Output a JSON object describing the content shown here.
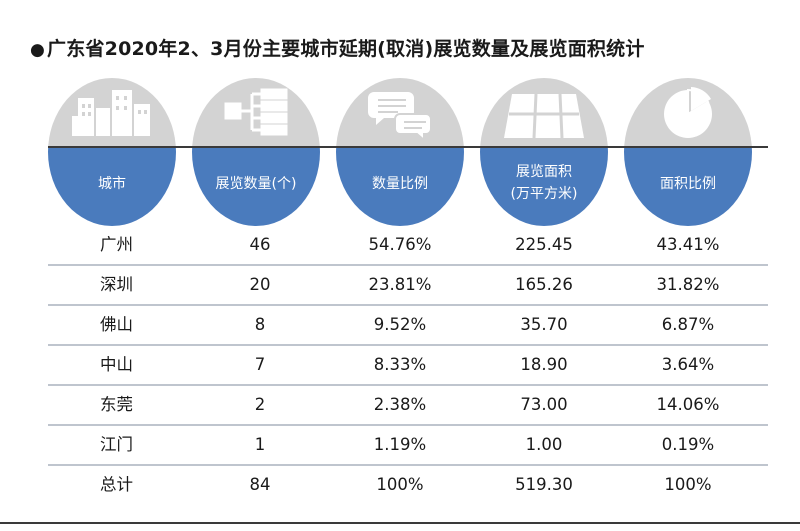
{
  "title": {
    "bullet": "●",
    "text": "广东省2020年2、3月份主要城市延期(取消)展览数量及展览面积统计"
  },
  "chart_data": {
    "type": "table",
    "title": "广东省2020年2、3月份主要城市延期(取消)展览数量及展览面积统计",
    "columns": [
      {
        "key": "city",
        "label": "城市",
        "icon": "buildings-icon"
      },
      {
        "key": "count",
        "label": "展览数量(个)",
        "icon": "hierarchy-icon"
      },
      {
        "key": "count_pct",
        "label": "数量比例",
        "icon": "speech-bubbles-icon"
      },
      {
        "key": "area",
        "label": "展览面积",
        "label2": "(万平方米)",
        "icon": "floor-plan-icon"
      },
      {
        "key": "area_pct",
        "label": "面积比例",
        "icon": "pie-chart-icon"
      }
    ],
    "rows": [
      {
        "city": "广州",
        "count": "46",
        "count_pct": "54.76%",
        "area": "225.45",
        "area_pct": "43.41%"
      },
      {
        "city": "深圳",
        "count": "20",
        "count_pct": "23.81%",
        "area": "165.26",
        "area_pct": "31.82%"
      },
      {
        "city": "佛山",
        "count": "8",
        "count_pct": "9.52%",
        "area": "35.70",
        "area_pct": "6.87%"
      },
      {
        "city": "中山",
        "count": "7",
        "count_pct": "8.33%",
        "area": "18.90",
        "area_pct": "3.64%"
      },
      {
        "city": "东莞",
        "count": "2",
        "count_pct": "2.38%",
        "area": "73.00",
        "area_pct": "14.06%"
      },
      {
        "city": "江门",
        "count": "1",
        "count_pct": "1.19%",
        "area": "1.00",
        "area_pct": "0.19%"
      },
      {
        "city": "总计",
        "count": "84",
        "count_pct": "100%",
        "area": "519.30",
        "area_pct": "100%"
      }
    ]
  },
  "colors": {
    "disc_top": "#d3d3d3",
    "disc_bottom": "#4a7bbd",
    "icon": "#ffffff",
    "row_divider": "#bfc5ce"
  }
}
